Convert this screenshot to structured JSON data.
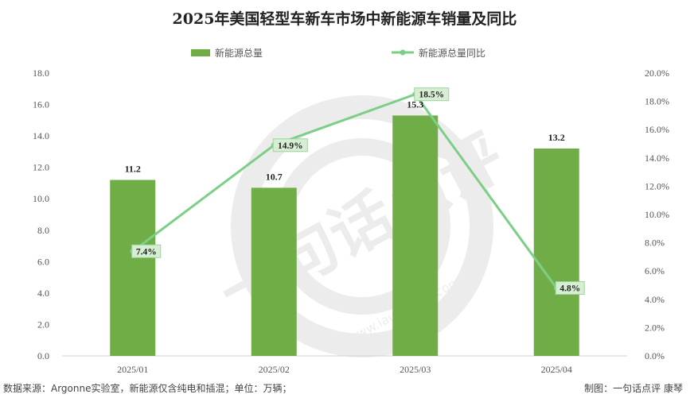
{
  "chart_data": {
    "type": "bar",
    "title": "2025年美国轻型车新车市场中新能源车销量及同比",
    "categories": [
      "2025/01",
      "2025/02",
      "2025/03",
      "2025/04"
    ],
    "series": [
      {
        "name": "新能源总量",
        "type": "bar",
        "axis": "left",
        "values": [
          11.2,
          10.7,
          15.3,
          13.2
        ],
        "labels": [
          "11.2",
          "10.7",
          "15.3",
          "13.2"
        ],
        "color": "#70AD47"
      },
      {
        "name": "新能源总量同比",
        "type": "line",
        "axis": "right",
        "values": [
          7.4,
          14.9,
          18.5,
          4.8
        ],
        "labels": [
          "7.4%",
          "14.9%",
          "18.5%",
          "4.8%"
        ],
        "color": "#7DCE86"
      }
    ],
    "y_left": {
      "min": 0,
      "max": 18,
      "step": 2,
      "ticks": [
        "0.0",
        "2.0",
        "4.0",
        "6.0",
        "8.0",
        "10.0",
        "12.0",
        "14.0",
        "16.0",
        "18.0"
      ]
    },
    "y_right": {
      "min": 0,
      "max": 20,
      "step": 2,
      "ticks": [
        "0.0%",
        "2.0%",
        "4.0%",
        "6.0%",
        "8.0%",
        "10.0%",
        "12.0%",
        "14.0%",
        "16.0%",
        "18.0%",
        "20.0%"
      ]
    },
    "grid": false,
    "legend_position": "top-center"
  },
  "footer": {
    "source": "数据来源：Argonne实验室，新能源仅含纯电和插混；单位：万辆；",
    "credit": "制图：一句话点评  康琴"
  },
  "watermark": {
    "text": "一句话点评",
    "url_text": "www.iautodaily.com"
  }
}
